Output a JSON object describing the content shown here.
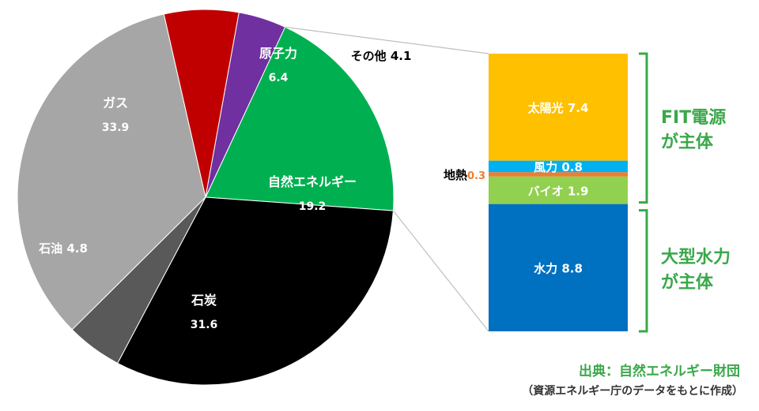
{
  "chart_data": [
    {
      "type": "pie",
      "slices": [
        {
          "name": "自然エネルギー",
          "value": 19.2,
          "color": "#00b050",
          "label_color": "#ffffff"
        },
        {
          "name": "石炭",
          "value": 31.6,
          "color": "#000000",
          "label_color": "#ffffff"
        },
        {
          "name": "石油",
          "value": 4.8,
          "color": "#595959",
          "label_color": "#ffffff"
        },
        {
          "name": "ガス",
          "value": 33.9,
          "color": "#a6a6a6",
          "label_color": "#ffffff"
        },
        {
          "name": "原子力",
          "value": 6.4,
          "color": "#c00000",
          "label_color": "#ffffff"
        },
        {
          "name": "その他",
          "value": 4.1,
          "color": "#7030a0",
          "label_color": "#000000"
        }
      ],
      "start_angle_deg": 25,
      "direction": "clockwise"
    },
    {
      "type": "bar",
      "stacked": true,
      "segments_top_to_bottom": [
        {
          "name": "太陽光",
          "value": 7.4,
          "color": "#ffc000",
          "label_color": "#ffffff"
        },
        {
          "name": "風力",
          "value": 0.8,
          "color": "#00b0f0",
          "label_color": "#ffffff"
        },
        {
          "name": "地熱",
          "value": 0.3,
          "color": "#ed7d31",
          "label_color": "#000000"
        },
        {
          "name": "バイオ",
          "value": 1.9,
          "color": "#92d050",
          "label_color": "#ffffff"
        },
        {
          "name": "水力",
          "value": 8.8,
          "color": "#0070c0",
          "label_color": "#ffffff"
        }
      ]
    }
  ],
  "brackets": {
    "fit_line1": "FIT電源",
    "fit_line2": "が主体",
    "hydro_line1": "大型水力",
    "hydro_line2": "が主体",
    "color": "#3aa84a"
  },
  "source": {
    "line1": "出典：自然エネルギー財団",
    "line2": "（資源エネルギー庁のデータをもとに作成）",
    "line1_color": "#3aa84a"
  }
}
